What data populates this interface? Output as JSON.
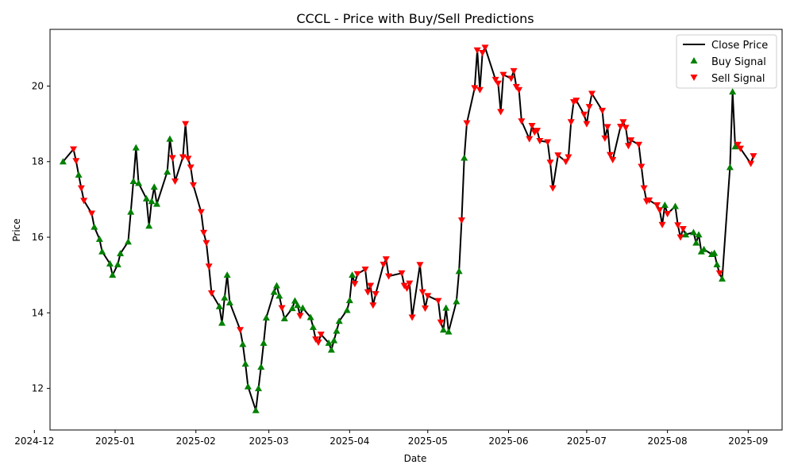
{
  "chart_data": {
    "type": "line",
    "title": "CCCL - Price with Buy/Sell Predictions",
    "xlabel": "Date",
    "ylabel": "Price",
    "xlim": [
      "2024-12-07",
      "2025-09-14"
    ],
    "ylim": [
      10.9,
      21.5
    ],
    "x_ticks": [
      {
        "date": "2024-12-01",
        "label": "2024-12"
      },
      {
        "date": "2025-01-01",
        "label": "2025-01"
      },
      {
        "date": "2025-02-01",
        "label": "2025-02"
      },
      {
        "date": "2025-03-01",
        "label": "2025-03"
      },
      {
        "date": "2025-04-01",
        "label": "2025-04"
      },
      {
        "date": "2025-05-01",
        "label": "2025-05"
      },
      {
        "date": "2025-06-01",
        "label": "2025-06"
      },
      {
        "date": "2025-07-01",
        "label": "2025-07"
      },
      {
        "date": "2025-08-01",
        "label": "2025-08"
      },
      {
        "date": "2025-09-01",
        "label": "2025-09"
      }
    ],
    "y_ticks": [
      12,
      14,
      16,
      18,
      20
    ],
    "legend": {
      "placement": "top-right",
      "entries": [
        {
          "label": "Close Price",
          "kind": "line"
        },
        {
          "label": "Buy Signal",
          "kind": "buy"
        },
        {
          "label": "Sell Signal",
          "kind": "sell"
        }
      ]
    },
    "colors": {
      "line": "#000000",
      "buy": "#008000",
      "sell": "#ff0000"
    },
    "series": [
      {
        "name": "Close Price",
        "points": [
          [
            "2024-12-12",
            18.0,
            "buy"
          ],
          [
            "2024-12-16",
            18.33,
            "sell"
          ],
          [
            "2024-12-17",
            18.02,
            "sell"
          ],
          [
            "2024-12-18",
            17.65,
            "buy"
          ],
          [
            "2024-12-19",
            17.3,
            "sell"
          ],
          [
            "2024-12-20",
            16.97,
            "sell"
          ],
          [
            "2024-12-23",
            16.63,
            "sell"
          ],
          [
            "2024-12-24",
            16.27,
            "buy"
          ],
          [
            "2024-12-26",
            15.95,
            "buy"
          ],
          [
            "2024-12-27",
            15.62,
            "buy"
          ],
          [
            "2024-12-30",
            15.3,
            "buy"
          ],
          [
            "2024-12-31",
            15.0,
            "buy"
          ],
          [
            "2025-01-02",
            15.28,
            "buy"
          ],
          [
            "2025-01-03",
            15.57,
            "buy"
          ],
          [
            "2025-01-06",
            15.88,
            "buy"
          ],
          [
            "2025-01-07",
            16.67,
            "buy"
          ],
          [
            "2025-01-08",
            17.48,
            "buy"
          ],
          [
            "2025-01-09",
            18.37,
            "buy"
          ],
          [
            "2025-01-10",
            17.43,
            "buy"
          ],
          [
            "2025-01-13",
            17.02,
            "buy"
          ],
          [
            "2025-01-14",
            16.3,
            "buy"
          ],
          [
            "2025-01-15",
            16.95,
            "buy"
          ],
          [
            "2025-01-16",
            17.33,
            "buy"
          ],
          [
            "2025-01-17",
            16.88,
            "buy"
          ],
          [
            "2025-01-21",
            17.73,
            "buy"
          ],
          [
            "2025-01-22",
            18.6,
            "buy"
          ],
          [
            "2025-01-23",
            18.1,
            "sell"
          ],
          [
            "2025-01-24",
            17.48,
            "sell"
          ],
          [
            "2025-01-27",
            18.12,
            "sell"
          ],
          [
            "2025-01-28",
            19.0,
            "sell"
          ],
          [
            "2025-01-29",
            18.08,
            "sell"
          ],
          [
            "2025-01-30",
            17.85,
            "sell"
          ],
          [
            "2025-01-31",
            17.38,
            "sell"
          ],
          [
            "2025-02-03",
            16.67,
            "sell"
          ],
          [
            "2025-02-04",
            16.12,
            "sell"
          ],
          [
            "2025-02-05",
            15.85,
            "sell"
          ],
          [
            "2025-02-06",
            15.23,
            "sell"
          ],
          [
            "2025-02-07",
            14.52,
            "sell"
          ],
          [
            "2025-02-10",
            14.17,
            "buy"
          ],
          [
            "2025-02-11",
            13.73,
            "buy"
          ],
          [
            "2025-02-12",
            14.4,
            "buy"
          ],
          [
            "2025-02-13",
            15.0,
            "buy"
          ],
          [
            "2025-02-14",
            14.27,
            "buy"
          ],
          [
            "2025-02-18",
            13.55,
            "sell"
          ],
          [
            "2025-02-19",
            13.17,
            "buy"
          ],
          [
            "2025-02-20",
            12.65,
            "buy"
          ],
          [
            "2025-02-21",
            12.05,
            "buy"
          ],
          [
            "2025-02-24",
            11.42,
            "buy"
          ],
          [
            "2025-02-25",
            12.0,
            "buy"
          ],
          [
            "2025-02-26",
            12.57,
            "buy"
          ],
          [
            "2025-02-27",
            13.2,
            "buy"
          ],
          [
            "2025-02-28",
            13.87,
            "buy"
          ],
          [
            "2025-03-03",
            14.55,
            "buy"
          ],
          [
            "2025-03-04",
            14.72,
            "buy"
          ],
          [
            "2025-03-05",
            14.45,
            "buy"
          ],
          [
            "2025-03-06",
            14.13,
            "sell"
          ],
          [
            "2025-03-07",
            13.85,
            "buy"
          ],
          [
            "2025-03-10",
            14.12,
            "buy"
          ],
          [
            "2025-03-11",
            14.32,
            "buy"
          ],
          [
            "2025-03-12",
            14.2,
            "buy"
          ],
          [
            "2025-03-13",
            13.92,
            "sell"
          ],
          [
            "2025-03-14",
            14.13,
            "buy"
          ],
          [
            "2025-03-17",
            13.88,
            "buy"
          ],
          [
            "2025-03-18",
            13.62,
            "buy"
          ],
          [
            "2025-03-19",
            13.3,
            "sell"
          ],
          [
            "2025-03-20",
            13.22,
            "sell"
          ],
          [
            "2025-03-21",
            13.43,
            "sell"
          ],
          [
            "2025-03-24",
            13.2,
            "buy"
          ],
          [
            "2025-03-25",
            13.02,
            "buy"
          ],
          [
            "2025-03-26",
            13.27,
            "buy"
          ],
          [
            "2025-03-27",
            13.52,
            "buy"
          ],
          [
            "2025-03-28",
            13.78,
            "buy"
          ],
          [
            "2025-03-31",
            14.07,
            "buy"
          ],
          [
            "2025-04-01",
            14.33,
            "buy"
          ],
          [
            "2025-04-02",
            15.0,
            "buy"
          ],
          [
            "2025-04-03",
            14.77,
            "sell"
          ],
          [
            "2025-04-04",
            15.03,
            "sell"
          ],
          [
            "2025-04-07",
            15.15,
            "sell"
          ],
          [
            "2025-04-08",
            14.55,
            "sell"
          ],
          [
            "2025-04-09",
            14.72,
            "sell"
          ],
          [
            "2025-04-10",
            14.2,
            "sell"
          ],
          [
            "2025-04-11",
            14.5,
            "sell"
          ],
          [
            "2025-04-14",
            15.28,
            "sell"
          ],
          [
            "2025-04-15",
            15.42,
            "sell"
          ],
          [
            "2025-04-16",
            14.97,
            "sell"
          ],
          [
            "2025-04-21",
            15.05,
            "sell"
          ],
          [
            "2025-04-22",
            14.72,
            "sell"
          ],
          [
            "2025-04-23",
            14.65,
            "sell"
          ],
          [
            "2025-04-24",
            14.78,
            "sell"
          ],
          [
            "2025-04-25",
            13.88,
            "sell"
          ],
          [
            "2025-04-28",
            15.27,
            "sell"
          ],
          [
            "2025-04-29",
            14.55,
            "sell"
          ],
          [
            "2025-04-30",
            14.12,
            "sell"
          ],
          [
            "2025-05-01",
            14.45,
            "sell"
          ],
          [
            "2025-05-05",
            14.32,
            "sell"
          ],
          [
            "2025-05-06",
            13.75,
            "sell"
          ],
          [
            "2025-05-07",
            13.55,
            "buy"
          ],
          [
            "2025-05-08",
            14.13,
            "buy"
          ],
          [
            "2025-05-09",
            13.5,
            "buy"
          ],
          [
            "2025-05-12",
            14.3,
            "buy"
          ],
          [
            "2025-05-13",
            15.1,
            "buy"
          ],
          [
            "2025-05-14",
            16.45,
            "sell"
          ],
          [
            "2025-05-15",
            18.1,
            "buy"
          ],
          [
            "2025-05-16",
            19.02,
            "sell"
          ],
          [
            "2025-05-19",
            19.95,
            "sell"
          ],
          [
            "2025-05-20",
            20.95,
            "sell"
          ],
          [
            "2025-05-21",
            19.9,
            "sell"
          ],
          [
            "2025-05-22",
            20.88,
            "sell"
          ],
          [
            "2025-05-23",
            21.02,
            "sell"
          ],
          [
            "2025-05-27",
            20.17,
            "sell"
          ],
          [
            "2025-05-28",
            20.07,
            "sell"
          ],
          [
            "2025-05-29",
            19.32,
            "sell"
          ],
          [
            "2025-05-30",
            20.3,
            "sell"
          ],
          [
            "2025-06-02",
            20.2,
            "sell"
          ],
          [
            "2025-06-03",
            20.4,
            "sell"
          ],
          [
            "2025-06-04",
            19.98,
            "sell"
          ],
          [
            "2025-06-05",
            19.9,
            "sell"
          ],
          [
            "2025-06-06",
            19.07,
            "sell"
          ],
          [
            "2025-06-09",
            18.6,
            "sell"
          ],
          [
            "2025-06-10",
            18.95,
            "sell"
          ],
          [
            "2025-06-11",
            18.78,
            "sell"
          ],
          [
            "2025-06-12",
            18.82,
            "sell"
          ],
          [
            "2025-06-13",
            18.55,
            "sell"
          ],
          [
            "2025-06-16",
            18.52,
            "sell"
          ],
          [
            "2025-06-17",
            17.98,
            "sell"
          ],
          [
            "2025-06-18",
            17.3,
            "sell"
          ],
          [
            "2025-06-20",
            18.17,
            "sell"
          ],
          [
            "2025-06-23",
            18.0,
            "sell"
          ],
          [
            "2025-06-24",
            18.12,
            "sell"
          ],
          [
            "2025-06-25",
            19.05,
            "sell"
          ],
          [
            "2025-06-26",
            19.58,
            "sell"
          ],
          [
            "2025-06-27",
            19.62,
            "sell"
          ],
          [
            "2025-06-30",
            19.25,
            "sell"
          ],
          [
            "2025-07-01",
            19.0,
            "sell"
          ],
          [
            "2025-07-02",
            19.45,
            "sell"
          ],
          [
            "2025-07-03",
            19.8,
            "sell"
          ],
          [
            "2025-07-07",
            19.35,
            "sell"
          ],
          [
            "2025-07-08",
            18.62,
            "sell"
          ],
          [
            "2025-07-09",
            18.92,
            "sell"
          ],
          [
            "2025-07-10",
            18.18,
            "sell"
          ],
          [
            "2025-07-11",
            18.05,
            "sell"
          ],
          [
            "2025-07-14",
            18.93,
            "sell"
          ],
          [
            "2025-07-15",
            19.05,
            "sell"
          ],
          [
            "2025-07-16",
            18.9,
            "sell"
          ],
          [
            "2025-07-17",
            18.42,
            "sell"
          ],
          [
            "2025-07-18",
            18.57,
            "sell"
          ],
          [
            "2025-07-21",
            18.45,
            "sell"
          ],
          [
            "2025-07-22",
            17.87,
            "sell"
          ],
          [
            "2025-07-23",
            17.3,
            "sell"
          ],
          [
            "2025-07-24",
            16.95,
            "sell"
          ],
          [
            "2025-07-25",
            16.98,
            "sell"
          ],
          [
            "2025-07-28",
            16.85,
            "sell"
          ],
          [
            "2025-07-29",
            16.72,
            "sell"
          ],
          [
            "2025-07-30",
            16.33,
            "sell"
          ],
          [
            "2025-07-31",
            16.85,
            "buy"
          ],
          [
            "2025-08-01",
            16.62,
            "sell"
          ],
          [
            "2025-08-04",
            16.82,
            "buy"
          ],
          [
            "2025-08-05",
            16.32,
            "sell"
          ],
          [
            "2025-08-06",
            16.0,
            "sell"
          ],
          [
            "2025-08-07",
            16.22,
            "sell"
          ],
          [
            "2025-08-08",
            16.07,
            "buy"
          ],
          [
            "2025-08-11",
            16.13,
            "buy"
          ],
          [
            "2025-08-12",
            15.85,
            "buy"
          ],
          [
            "2025-08-13",
            16.07,
            "buy"
          ],
          [
            "2025-08-14",
            15.62,
            "buy"
          ],
          [
            "2025-08-15",
            15.68,
            "buy"
          ],
          [
            "2025-08-18",
            15.55,
            "buy"
          ],
          [
            "2025-08-19",
            15.58,
            "buy"
          ],
          [
            "2025-08-20",
            15.28,
            "buy"
          ],
          [
            "2025-08-21",
            15.05,
            "sell"
          ],
          [
            "2025-08-22",
            14.9,
            "buy"
          ],
          [
            "2025-08-25",
            17.85,
            "buy"
          ],
          [
            "2025-08-26",
            19.85,
            "buy"
          ],
          [
            "2025-08-27",
            18.4,
            "buy"
          ],
          [
            "2025-08-28",
            18.45,
            "sell"
          ],
          [
            "2025-08-29",
            18.35,
            "sell"
          ],
          [
            "2025-09-02",
            17.95,
            "sell"
          ],
          [
            "2025-09-03",
            18.15,
            "sell"
          ]
        ]
      }
    ]
  }
}
